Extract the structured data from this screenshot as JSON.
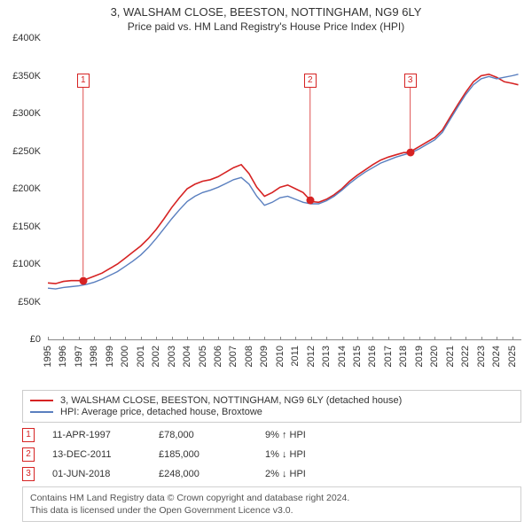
{
  "title_line1": "3, WALSHAM CLOSE, BEESTON, NOTTINGHAM, NG9 6LY",
  "title_line2": "Price paid vs. HM Land Registry's House Price Index (HPI)",
  "chart": {
    "type": "line",
    "background_color": "#ffffff",
    "axis_color": "#888888",
    "text_color": "#333333",
    "tick_fontsize": 11,
    "x_min_year": 1995,
    "x_max_year": 2025.6,
    "x_ticks": [
      1995,
      1996,
      1997,
      1998,
      1999,
      2000,
      2001,
      2002,
      2003,
      2004,
      2005,
      2006,
      2007,
      2008,
      2009,
      2010,
      2011,
      2012,
      2013,
      2014,
      2015,
      2016,
      2017,
      2018,
      2019,
      2020,
      2021,
      2022,
      2023,
      2024,
      2025
    ],
    "y_min": 0,
    "y_max": 400000,
    "y_ticks": [
      0,
      50000,
      100000,
      150000,
      200000,
      250000,
      300000,
      350000,
      400000
    ],
    "y_tick_labels": [
      "£0",
      "£50K",
      "£100K",
      "£150K",
      "£200K",
      "£250K",
      "£300K",
      "£350K",
      "£400K"
    ],
    "series": [
      {
        "name": "property",
        "label": "3, WALSHAM CLOSE, BEESTON, NOTTINGHAM, NG9 6LY (detached house)",
        "color": "#d62323",
        "line_width": 1.6,
        "points": [
          [
            1995.0,
            75000
          ],
          [
            1995.5,
            74000
          ],
          [
            1996.0,
            77000
          ],
          [
            1996.5,
            78000
          ],
          [
            1997.0,
            78000
          ],
          [
            1997.3,
            78000
          ],
          [
            1997.5,
            80000
          ],
          [
            1998.0,
            84000
          ],
          [
            1998.5,
            88000
          ],
          [
            1999.0,
            94000
          ],
          [
            1999.5,
            100000
          ],
          [
            2000.0,
            108000
          ],
          [
            2000.5,
            116000
          ],
          [
            2001.0,
            124000
          ],
          [
            2001.5,
            134000
          ],
          [
            2002.0,
            146000
          ],
          [
            2002.5,
            160000
          ],
          [
            2003.0,
            175000
          ],
          [
            2003.5,
            188000
          ],
          [
            2004.0,
            200000
          ],
          [
            2004.5,
            206000
          ],
          [
            2005.0,
            210000
          ],
          [
            2005.5,
            212000
          ],
          [
            2006.0,
            216000
          ],
          [
            2006.5,
            222000
          ],
          [
            2007.0,
            228000
          ],
          [
            2007.5,
            232000
          ],
          [
            2008.0,
            220000
          ],
          [
            2008.5,
            202000
          ],
          [
            2009.0,
            190000
          ],
          [
            2009.5,
            195000
          ],
          [
            2010.0,
            202000
          ],
          [
            2010.5,
            205000
          ],
          [
            2011.0,
            200000
          ],
          [
            2011.5,
            195000
          ],
          [
            2011.95,
            185000
          ],
          [
            2012.0,
            183000
          ],
          [
            2012.5,
            182000
          ],
          [
            2013.0,
            186000
          ],
          [
            2013.5,
            192000
          ],
          [
            2014.0,
            200000
          ],
          [
            2014.5,
            210000
          ],
          [
            2015.0,
            218000
          ],
          [
            2015.5,
            225000
          ],
          [
            2016.0,
            232000
          ],
          [
            2016.5,
            238000
          ],
          [
            2017.0,
            242000
          ],
          [
            2017.5,
            245000
          ],
          [
            2018.0,
            248000
          ],
          [
            2018.42,
            248000
          ],
          [
            2018.5,
            250000
          ],
          [
            2019.0,
            256000
          ],
          [
            2019.5,
            262000
          ],
          [
            2020.0,
            268000
          ],
          [
            2020.5,
            278000
          ],
          [
            2021.0,
            295000
          ],
          [
            2021.5,
            312000
          ],
          [
            2022.0,
            328000
          ],
          [
            2022.5,
            342000
          ],
          [
            2023.0,
            350000
          ],
          [
            2023.5,
            352000
          ],
          [
            2024.0,
            348000
          ],
          [
            2024.5,
            342000
          ],
          [
            2025.0,
            340000
          ],
          [
            2025.4,
            338000
          ]
        ]
      },
      {
        "name": "hpi",
        "label": "HPI: Average price, detached house, Broxtowe",
        "color": "#5a7fbf",
        "line_width": 1.4,
        "points": [
          [
            1995.0,
            68000
          ],
          [
            1995.5,
            67000
          ],
          [
            1996.0,
            69000
          ],
          [
            1996.5,
            70000
          ],
          [
            1997.0,
            71000
          ],
          [
            1997.5,
            73000
          ],
          [
            1998.0,
            76000
          ],
          [
            1998.5,
            80000
          ],
          [
            1999.0,
            85000
          ],
          [
            1999.5,
            90000
          ],
          [
            2000.0,
            97000
          ],
          [
            2000.5,
            104000
          ],
          [
            2001.0,
            112000
          ],
          [
            2001.5,
            122000
          ],
          [
            2002.0,
            134000
          ],
          [
            2002.5,
            147000
          ],
          [
            2003.0,
            160000
          ],
          [
            2003.5,
            172000
          ],
          [
            2004.0,
            183000
          ],
          [
            2004.5,
            190000
          ],
          [
            2005.0,
            195000
          ],
          [
            2005.5,
            198000
          ],
          [
            2006.0,
            202000
          ],
          [
            2006.5,
            207000
          ],
          [
            2007.0,
            212000
          ],
          [
            2007.5,
            215000
          ],
          [
            2008.0,
            206000
          ],
          [
            2008.5,
            190000
          ],
          [
            2009.0,
            178000
          ],
          [
            2009.5,
            182000
          ],
          [
            2010.0,
            188000
          ],
          [
            2010.5,
            190000
          ],
          [
            2011.0,
            186000
          ],
          [
            2011.5,
            182000
          ],
          [
            2012.0,
            180000
          ],
          [
            2012.5,
            180000
          ],
          [
            2013.0,
            184000
          ],
          [
            2013.5,
            190000
          ],
          [
            2014.0,
            198000
          ],
          [
            2014.5,
            207000
          ],
          [
            2015.0,
            215000
          ],
          [
            2015.5,
            222000
          ],
          [
            2016.0,
            228000
          ],
          [
            2016.5,
            234000
          ],
          [
            2017.0,
            238000
          ],
          [
            2017.5,
            242000
          ],
          [
            2018.0,
            245000
          ],
          [
            2018.5,
            248000
          ],
          [
            2019.0,
            253000
          ],
          [
            2019.5,
            259000
          ],
          [
            2020.0,
            265000
          ],
          [
            2020.5,
            275000
          ],
          [
            2021.0,
            292000
          ],
          [
            2021.5,
            309000
          ],
          [
            2022.0,
            325000
          ],
          [
            2022.5,
            338000
          ],
          [
            2023.0,
            346000
          ],
          [
            2023.5,
            349000
          ],
          [
            2024.0,
            346000
          ],
          [
            2024.5,
            348000
          ],
          [
            2025.0,
            350000
          ],
          [
            2025.4,
            352000
          ]
        ]
      }
    ],
    "markers": [
      {
        "id": "1",
        "year": 1997.28,
        "value": 78000,
        "color": "#d62323",
        "label_top": 40
      },
      {
        "id": "2",
        "year": 2011.95,
        "value": 185000,
        "color": "#d62323",
        "label_top": 40
      },
      {
        "id": "3",
        "year": 2018.42,
        "value": 248000,
        "color": "#d62323",
        "label_top": 40
      }
    ]
  },
  "legend": [
    {
      "color": "#d62323",
      "text": "3, WALSHAM CLOSE, BEESTON, NOTTINGHAM, NG9 6LY (detached house)"
    },
    {
      "color": "#5a7fbf",
      "text": "HPI: Average price, detached house, Broxtowe"
    }
  ],
  "events": [
    {
      "id": "1",
      "color": "#d62323",
      "date": "11-APR-1997",
      "price": "£78,000",
      "hpi": "9% ↑ HPI"
    },
    {
      "id": "2",
      "color": "#d62323",
      "date": "13-DEC-2011",
      "price": "£185,000",
      "hpi": "1% ↓ HPI"
    },
    {
      "id": "3",
      "color": "#d62323",
      "date": "01-JUN-2018",
      "price": "£248,000",
      "hpi": "2% ↓ HPI"
    }
  ],
  "footnote_line1": "Contains HM Land Registry data © Crown copyright and database right 2024.",
  "footnote_line2": "This data is licensed under the Open Government Licence v3.0."
}
